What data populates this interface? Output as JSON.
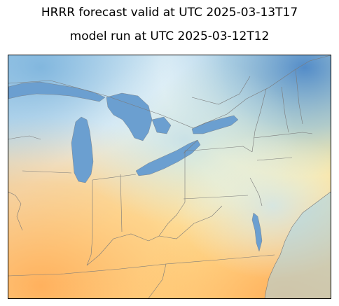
{
  "figure": {
    "title_line_1": "HRRR forecast valid at UTC 2025-03-13T17",
    "title_line_2": "model run at UTC 2025-03-12T12"
  },
  "map": {
    "colormap": {
      "cold": "#4a86c8",
      "cool": "#9cc8e6",
      "pale": "#e6f3f8",
      "neutral": "#fbf8c8",
      "mild": "#ffe9a0",
      "warm": "#ffbe6a",
      "hot": "#ffad58"
    },
    "lake_color": "#6b9fd0",
    "ocean_color": "#a8d6ea",
    "boundary_color": "#7a7a7a"
  }
}
